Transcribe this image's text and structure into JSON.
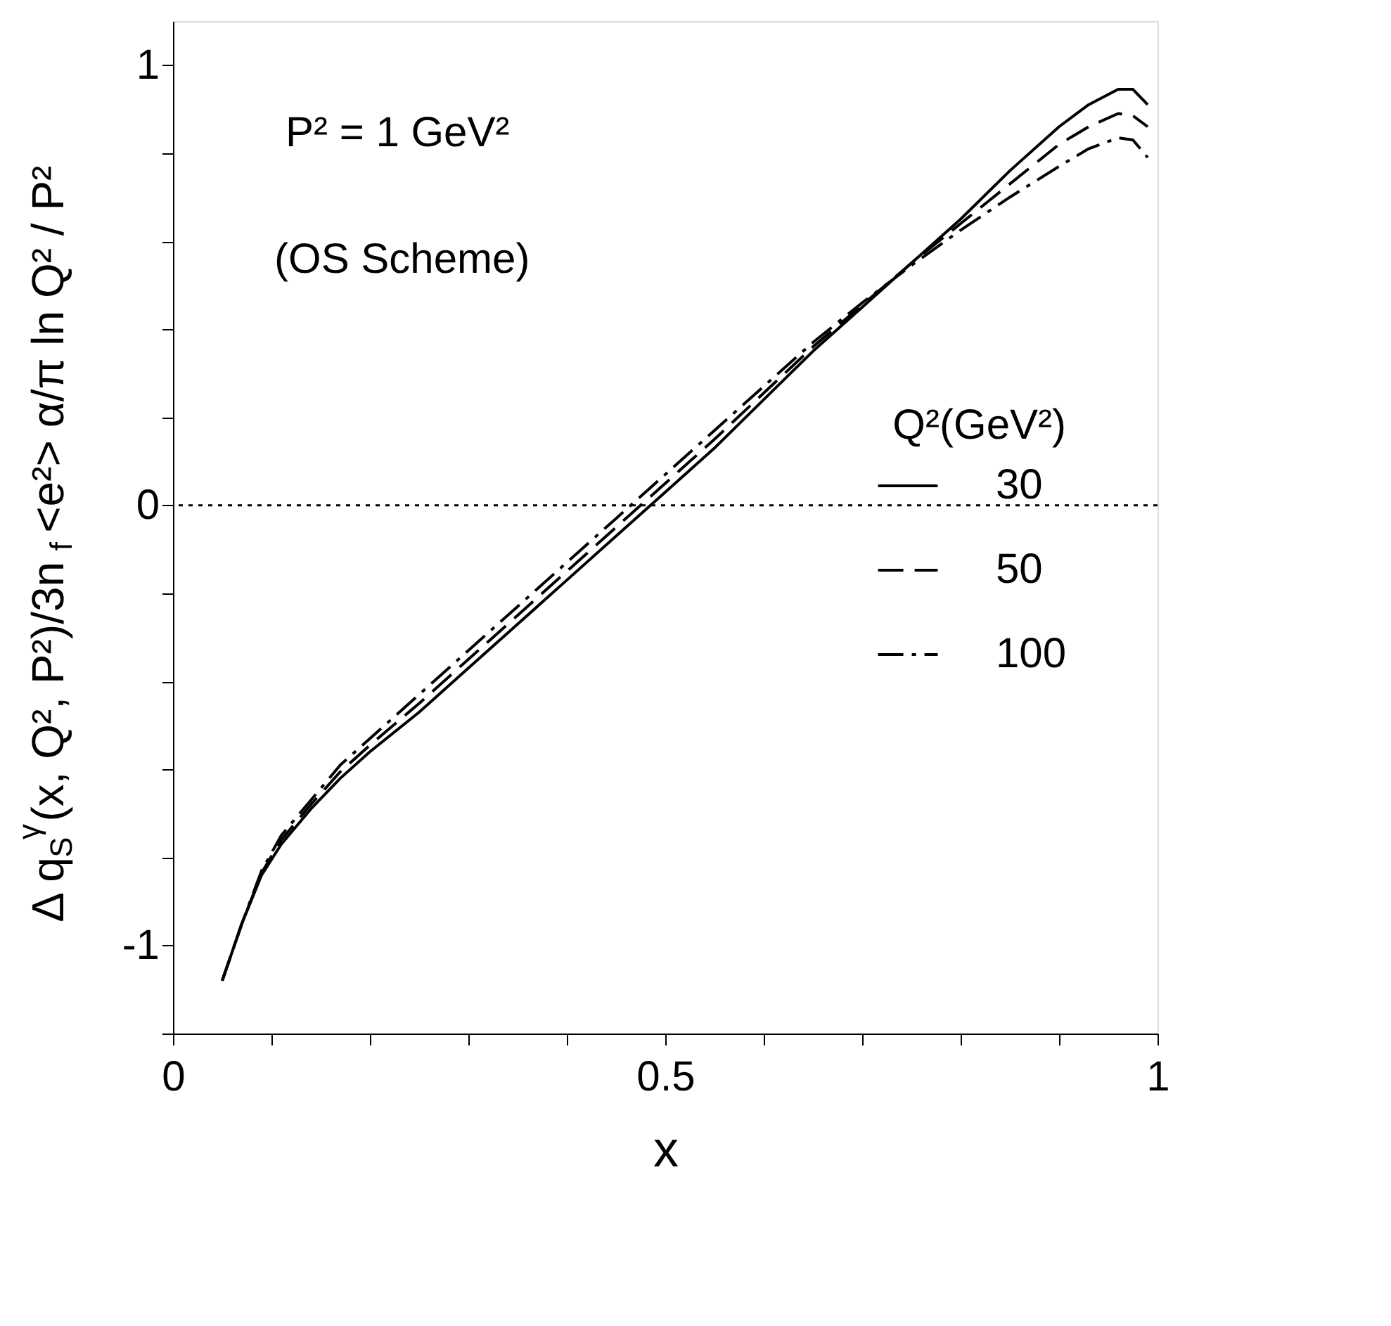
{
  "chart_data": {
    "type": "line",
    "xlabel": "x",
    "ylabel": "Δ q$_{S}$$^{γ}$(x, Q², P²)/3n$_{f}$ <e²> α/π ln Q² / P²",
    "legend_title": "Q²(GeV²)",
    "legend": "right",
    "grid": false,
    "annotations": [
      "P² = 1 GeV²",
      "(OS Scheme)"
    ],
    "xlim": [
      0,
      1
    ],
    "ylim": [
      -1.2,
      1.1
    ],
    "xticks": [
      0,
      {
        "value": 0.1,
        "label": null
      },
      {
        "value": 0.2,
        "label": null
      },
      {
        "value": 0.3,
        "label": null
      },
      {
        "value": 0.4,
        "label": null
      },
      0.5,
      {
        "value": 0.6,
        "label": null
      },
      {
        "value": 0.7,
        "label": null
      },
      {
        "value": 0.8,
        "label": null
      },
      {
        "value": 0.9,
        "label": null
      },
      1
    ],
    "yticks": [
      {
        "value": -1.2,
        "label": null
      },
      -1,
      {
        "value": -0.8,
        "label": null
      },
      {
        "value": -0.6,
        "label": null
      },
      {
        "value": -0.4,
        "label": null
      },
      {
        "value": -0.2,
        "label": null
      },
      0,
      {
        "value": 0.2,
        "label": null
      },
      {
        "value": 0.4,
        "label": null
      },
      {
        "value": 0.6,
        "label": null
      },
      {
        "value": 0.8,
        "label": null
      },
      1
    ],
    "ref_lines": [
      {
        "axis": "y",
        "value": 0,
        "label": null,
        "line_style": "dotted",
        "color": "#000000"
      }
    ],
    "x": [
      0.05,
      0.07,
      0.09,
      0.11,
      0.14,
      0.17,
      0.2,
      0.25,
      0.3,
      0.35,
      0.4,
      0.45,
      0.5,
      0.55,
      0.6,
      0.65,
      0.7,
      0.75,
      0.8,
      0.85,
      0.9,
      0.93,
      0.96,
      0.975,
      0.99
    ],
    "series": [
      {
        "name": "30",
        "color": "#000000",
        "line_style": "solid",
        "values": [
          -1.08,
          -0.95,
          -0.84,
          -0.77,
          -0.69,
          -0.62,
          -0.56,
          -0.47,
          -0.37,
          -0.27,
          -0.17,
          -0.07,
          0.03,
          0.13,
          0.24,
          0.35,
          0.45,
          0.55,
          0.65,
          0.76,
          0.86,
          0.91,
          0.945,
          0.945,
          0.91
        ]
      },
      {
        "name": "50",
        "color": "#000000",
        "line_style": "dashed",
        "values": [
          -1.08,
          -0.95,
          -0.835,
          -0.76,
          -0.68,
          -0.605,
          -0.545,
          -0.45,
          -0.35,
          -0.25,
          -0.15,
          -0.05,
          0.05,
          0.15,
          0.255,
          0.36,
          0.455,
          0.55,
          0.64,
          0.73,
          0.82,
          0.86,
          0.89,
          0.885,
          0.86
        ]
      },
      {
        "name": "100",
        "color": "#000000",
        "line_style": "dashdot",
        "values": [
          -1.08,
          -0.95,
          -0.83,
          -0.75,
          -0.67,
          -0.59,
          -0.53,
          -0.43,
          -0.33,
          -0.23,
          -0.13,
          -0.03,
          0.07,
          0.17,
          0.27,
          0.37,
          0.46,
          0.545,
          0.625,
          0.7,
          0.77,
          0.81,
          0.835,
          0.83,
          0.79
        ]
      }
    ]
  }
}
